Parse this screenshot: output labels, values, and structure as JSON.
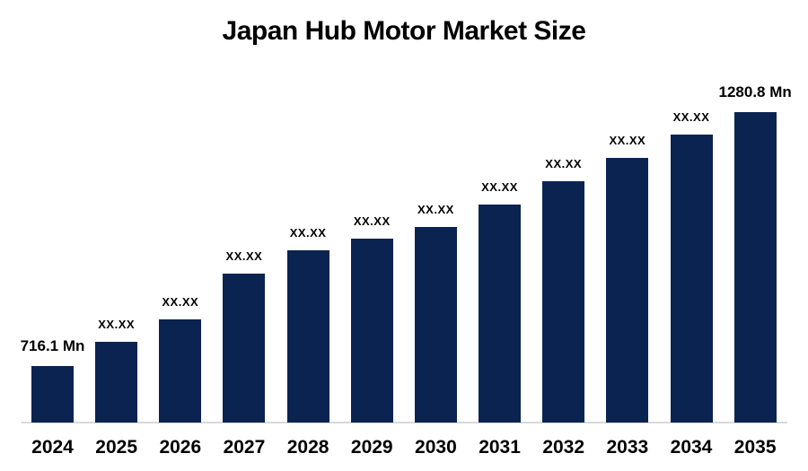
{
  "chart_data": {
    "type": "bar",
    "title": "Japan Hub Motor Market Size",
    "unit": "Mn",
    "xlabel": "",
    "ylabel": "",
    "legend": "none",
    "gridlines": false,
    "y_axis_visible": false,
    "categories": [
      "2024",
      "2025",
      "2026",
      "2027",
      "2028",
      "2029",
      "2030",
      "2031",
      "2032",
      "2033",
      "2034",
      "2035"
    ],
    "bar_labels": [
      "716.1 Mn",
      "XX.XX",
      "XX.XX",
      "XX.XX",
      "XX.XX",
      "XX.XX",
      "XX.XX",
      "XX.XX",
      "XX.XX",
      "XX.XX",
      "XX.XX",
      "1280.8 Mn"
    ],
    "values_mn_est": [
      716.1,
      769.0,
      818.9,
      921.6,
      973.5,
      999.5,
      1025.4,
      1075.3,
      1127.2,
      1179.0,
      1230.9,
      1280.8
    ],
    "known_values": [
      {
        "year": "2024",
        "value": 716.1,
        "label": "716.1 Mn"
      },
      {
        "year": "2035",
        "value": 1280.8,
        "label": "1280.8 Mn"
      }
    ],
    "masked_label": "XX.XX",
    "colors": {
      "bar": "#0A2351",
      "axis_line": "#D9D9D9",
      "text": "#000000",
      "background": "#FFFFFF"
    }
  }
}
